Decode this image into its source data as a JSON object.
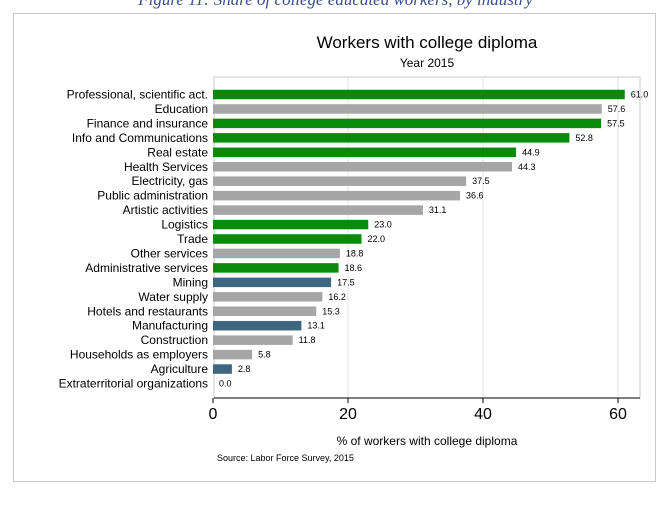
{
  "caption": "Figure 11: Share of college educated workers, by industry",
  "chart_data": {
    "type": "bar",
    "orientation": "horizontal",
    "title": "Workers with college diploma",
    "subtitle": "Year 2015",
    "xlabel": "% of workers with college diploma",
    "xlim": [
      0,
      63
    ],
    "xticks": [
      0,
      20,
      40,
      60
    ],
    "grid": true,
    "note": "Source: Labor Force Survey, 2015",
    "colors": {
      "green": "#0a8a0a",
      "gray": "#a6a6a6",
      "blue": "#3d6680"
    },
    "categories": [
      "Professional, scientific act.",
      "Education",
      "Finance and insurance",
      "Info and Communications",
      "Real estate",
      "Health Services",
      "Electricity, gas",
      "Public administration",
      "Artistic activities",
      "Logistics",
      "Trade",
      "Other services",
      "Administrative services",
      "Mining",
      "Water supply",
      "Hotels and restaurants",
      "Manufacturing",
      "Construction",
      "Households as employers",
      "Agriculture",
      "Extraterritorial organizations"
    ],
    "values": [
      61.0,
      57.6,
      57.5,
      52.8,
      44.9,
      44.3,
      37.5,
      36.6,
      31.1,
      23.0,
      22.0,
      18.8,
      18.6,
      17.5,
      16.2,
      15.3,
      13.1,
      11.8,
      5.8,
      2.8,
      0.0
    ],
    "value_labels": [
      "61.0",
      "57.6",
      "57.5",
      "52.8",
      "44.9",
      "44.3",
      "37.5",
      "36.6",
      "31.1",
      "23.0",
      "22.0",
      "18.8",
      "18.6",
      "17.5",
      "16.2",
      "15.3",
      "13.1",
      "11.8",
      "5.8",
      "2.8",
      "0.0"
    ],
    "bar_colors": [
      "green",
      "gray",
      "green",
      "green",
      "green",
      "gray",
      "gray",
      "gray",
      "gray",
      "green",
      "green",
      "gray",
      "green",
      "blue",
      "gray",
      "gray",
      "blue",
      "gray",
      "gray",
      "blue",
      "gray"
    ]
  }
}
